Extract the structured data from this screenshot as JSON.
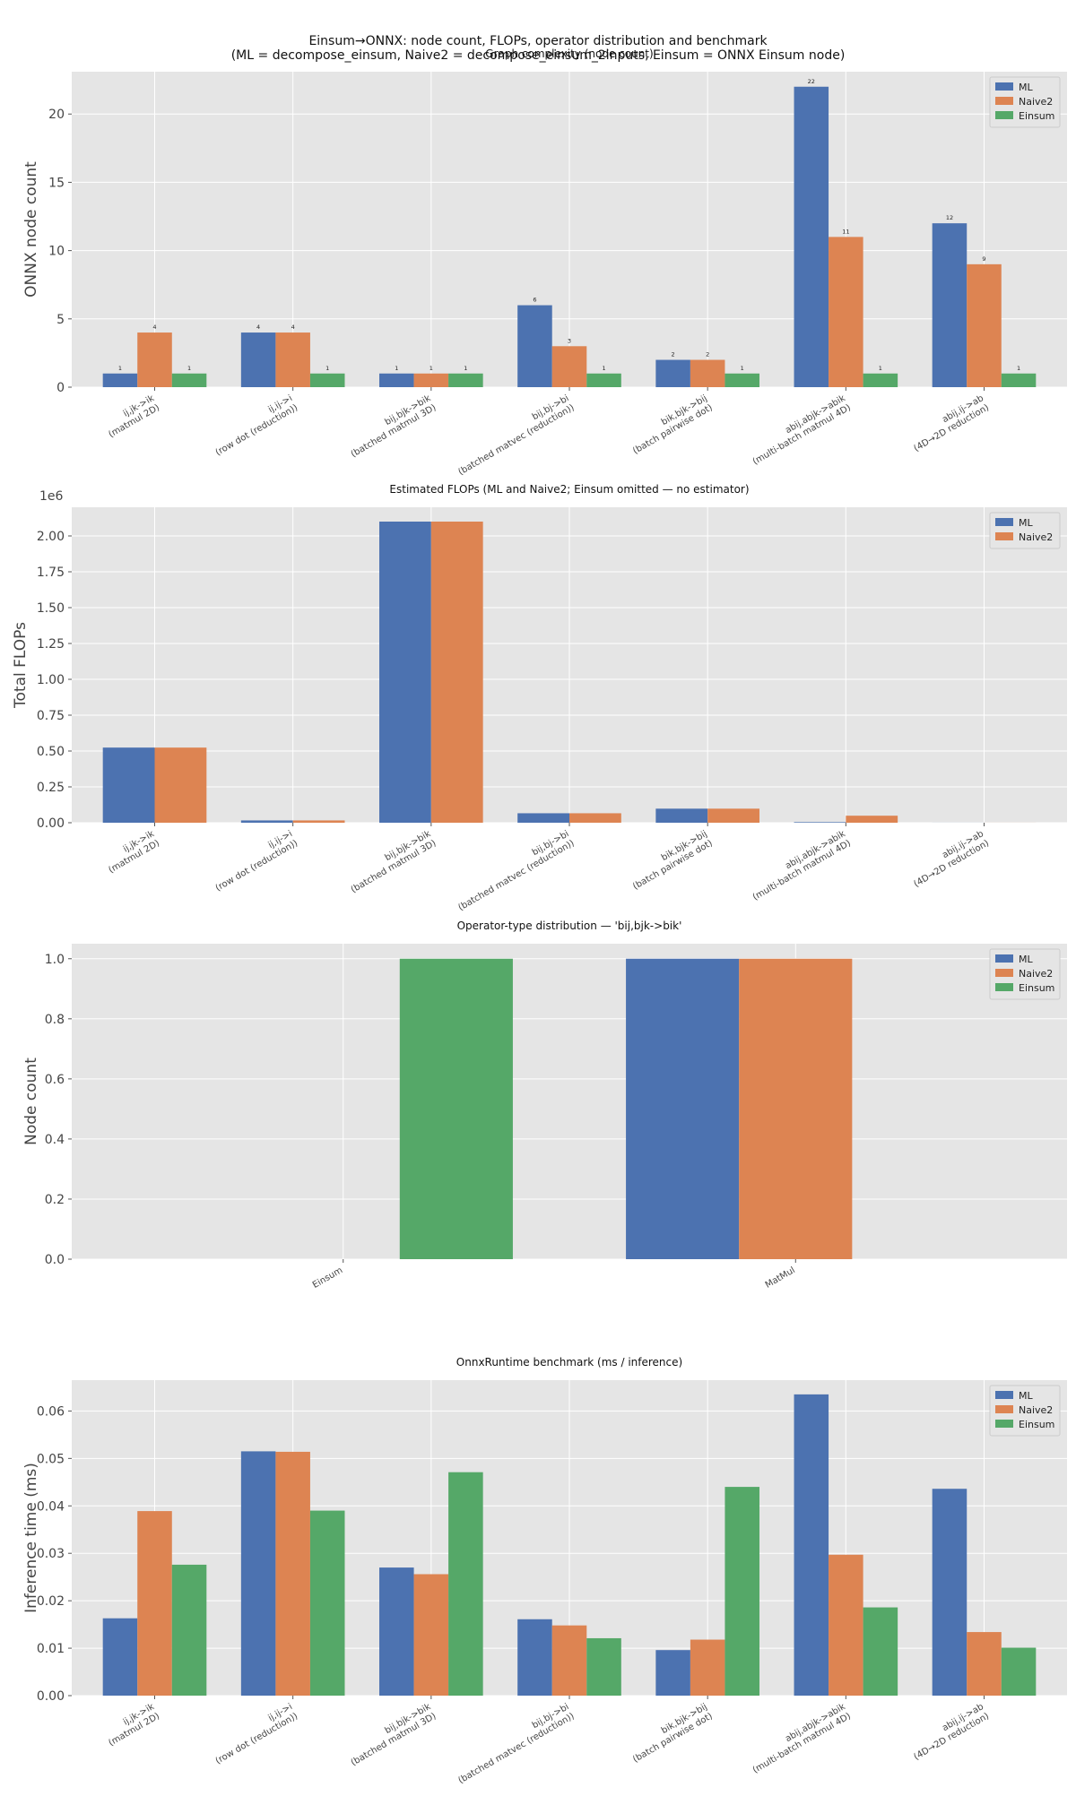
{
  "suptitle_line1": "Einsum→ONNX: node count, FLOPs, operator distribution and benchmark",
  "suptitle_line2": "(ML = decompose_einsum, Naive2 = decompose_einsum_2inputs, Einsum = ONNX Einsum node)",
  "colors": {
    "ML": "#4c72b0",
    "Naive2": "#dd8452",
    "Einsum": "#55a868",
    "axes_bg": "#e5e5e5",
    "grid": "#ffffff"
  },
  "chart_data": [
    {
      "type": "bar",
      "title": "Graph complexity (node count)",
      "ylabel": "ONNX node count",
      "xlabel": "",
      "ylim": [
        0,
        23.1
      ],
      "yticks": [
        "0",
        "5",
        "10",
        "15",
        "20"
      ],
      "ytick_values": [
        0,
        5,
        10,
        15,
        20
      ],
      "grid": true,
      "legend": "top-right",
      "show_value_labels": true,
      "categories": [
        "ij,jk->ik\n(matmul 2D)",
        "ij,ij->i\n(row dot (reduction))",
        "bij,bjk->bik\n(batched matmul 3D)",
        "bij,bj->bi\n(batched matvec (reduction))",
        "bik,bjk->bij\n(batch pairwise dot)",
        "abij,abjk->abik\n(multi-batch matmul 4D)",
        "abij,ij->ab\n(4D→2D reduction)"
      ],
      "series": [
        {
          "name": "ML",
          "values": [
            1,
            4,
            1,
            6,
            2,
            22,
            12
          ]
        },
        {
          "name": "Naive2",
          "values": [
            4,
            4,
            1,
            3,
            2,
            11,
            9
          ]
        },
        {
          "name": "Einsum",
          "values": [
            1,
            1,
            1,
            1,
            1,
            1,
            1
          ]
        }
      ]
    },
    {
      "type": "bar",
      "title": "Estimated FLOPs (ML and Naive2; Einsum omitted — no estimator)",
      "ylabel": "Total FLOPs",
      "xlabel": "",
      "scale_label": "1e6",
      "ylim": [
        0,
        2.2
      ],
      "yticks": [
        "0.00",
        "0.25",
        "0.50",
        "0.75",
        "1.00",
        "1.25",
        "1.50",
        "1.75",
        "2.00"
      ],
      "ytick_values": [
        0,
        0.25,
        0.5,
        0.75,
        1.0,
        1.25,
        1.5,
        1.75,
        2.0
      ],
      "grid": true,
      "legend": "top-right",
      "show_value_labels": false,
      "categories": [
        "ij,jk->ik\n(matmul 2D)",
        "ij,ij->i\n(row dot (reduction))",
        "bij,bjk->bik\n(batched matmul 3D)",
        "bij,bj->bi\n(batched matvec (reduction))",
        "bik,bjk->bij\n(batch pairwise dot)",
        "abij,abjk->abik\n(multi-batch matmul 4D)",
        "abij,ij->ab\n(4D→2D reduction)"
      ],
      "series": [
        {
          "name": "ML",
          "values": [
            0.524,
            0.016,
            2.1,
            0.066,
            0.098,
            0.004,
            0.0003
          ]
        },
        {
          "name": "Naive2",
          "values": [
            0.524,
            0.016,
            2.1,
            0.066,
            0.098,
            0.049,
            0.0003
          ]
        }
      ]
    },
    {
      "type": "bar",
      "title": "Operator-type distribution — 'bij,bjk->bik'",
      "ylabel": "Node count",
      "xlabel": "",
      "ylim": [
        0,
        1.05
      ],
      "yticks": [
        "0.0",
        "0.2",
        "0.4",
        "0.6",
        "0.8",
        "1.0"
      ],
      "ytick_values": [
        0,
        0.2,
        0.4,
        0.6,
        0.8,
        1.0
      ],
      "grid": true,
      "legend": "top-right",
      "show_value_labels": false,
      "categories": [
        "Einsum",
        "MatMul"
      ],
      "series": [
        {
          "name": "ML",
          "values": [
            0,
            1
          ]
        },
        {
          "name": "Naive2",
          "values": [
            0,
            1
          ]
        },
        {
          "name": "Einsum",
          "values": [
            1,
            0
          ]
        }
      ]
    },
    {
      "type": "bar",
      "title": "OnnxRuntime benchmark (ms / inference)",
      "ylabel": "Inference time (ms)",
      "xlabel": "",
      "ylim": [
        0,
        0.0665
      ],
      "yticks": [
        "0.00",
        "0.01",
        "0.02",
        "0.03",
        "0.04",
        "0.05",
        "0.06"
      ],
      "ytick_values": [
        0,
        0.01,
        0.02,
        0.03,
        0.04,
        0.05,
        0.06
      ],
      "grid": true,
      "legend": "top-right",
      "show_value_labels": false,
      "categories": [
        "ij,jk->ik\n(matmul 2D)",
        "ij,ij->i\n(row dot (reduction))",
        "bij,bjk->bik\n(batched matmul 3D)",
        "bij,bj->bi\n(batched matvec (reduction))",
        "bik,bjk->bij\n(batch pairwise dot)",
        "abij,abjk->abik\n(multi-batch matmul 4D)",
        "abij,ij->ab\n(4D→2D reduction)"
      ],
      "series": [
        {
          "name": "ML",
          "values": [
            0.0163,
            0.0515,
            0.027,
            0.0161,
            0.0096,
            0.0635,
            0.0436
          ]
        },
        {
          "name": "Naive2",
          "values": [
            0.0389,
            0.0514,
            0.0256,
            0.0148,
            0.0118,
            0.0297,
            0.0134
          ]
        },
        {
          "name": "Einsum",
          "values": [
            0.0276,
            0.039,
            0.0471,
            0.0121,
            0.044,
            0.0186,
            0.0101
          ]
        }
      ]
    }
  ]
}
